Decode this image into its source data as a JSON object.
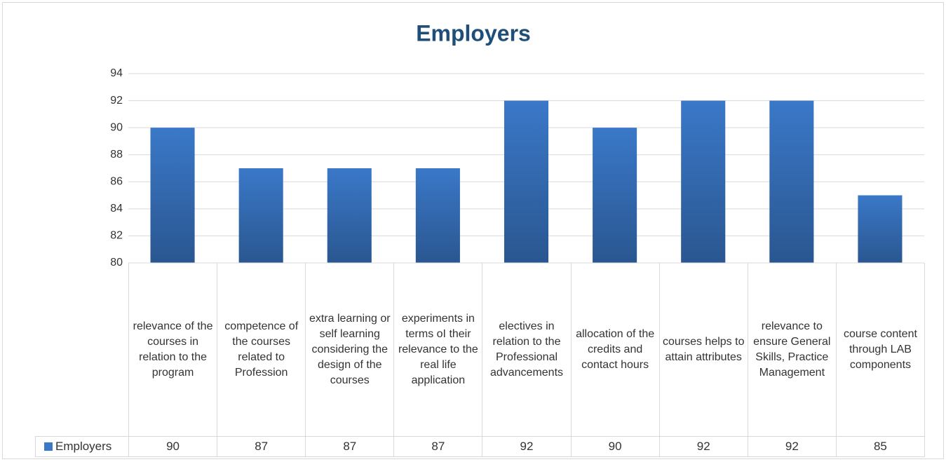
{
  "chart_data": {
    "type": "bar",
    "title": "Employers",
    "categories": [
      "relevance of the courses in relation to the program",
      "competence of the courses related to Profession",
      "extra learning or self learning considering the design of the courses",
      "experiments in terms oI their relevance to the real life application",
      "electives in relation to the Professional advancements",
      "allocation of the credits and contact hours",
      "courses helps to attain attributes",
      "relevance to ensure General Skills, Practice Management",
      "course content through LAB components"
    ],
    "series": [
      {
        "name": "Employers",
        "color": "#3a78c8",
        "values": [
          90,
          87,
          87,
          87,
          92,
          90,
          92,
          92,
          85
        ]
      }
    ],
    "ylim": [
      80,
      94
    ],
    "yticks": [
      80,
      82,
      84,
      86,
      88,
      90,
      92,
      94
    ],
    "grid": true,
    "legend": "bottom"
  }
}
